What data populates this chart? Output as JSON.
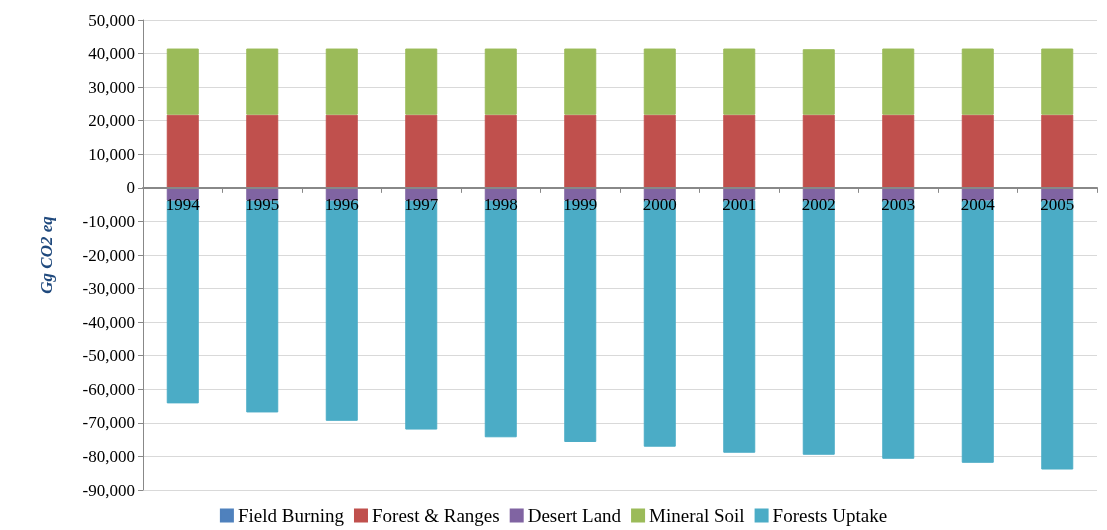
{
  "chart_data": {
    "type": "bar",
    "stacked": true,
    "ylabel": "Gg CO2 eq",
    "categories": [
      "1994",
      "1995",
      "1996",
      "1997",
      "1998",
      "1999",
      "2000",
      "2001",
      "2002",
      "2003",
      "2004",
      "2005"
    ],
    "series": [
      {
        "name": "Field Burning",
        "color": "#4f81bd",
        "values": [
          null,
          null,
          null,
          null,
          null,
          null,
          null,
          null,
          null,
          null,
          null,
          null
        ]
      },
      {
        "name": "Forest & Ranges",
        "color": "#c0504d",
        "values": [
          21800,
          21800,
          21800,
          21800,
          21800,
          21800,
          21800,
          21800,
          21800,
          21800,
          21800,
          21800
        ]
      },
      {
        "name": "Desert Land",
        "color": "#8064a2",
        "values": [
          -3800,
          -3800,
          -3800,
          -3800,
          -3800,
          -3800,
          -3800,
          -3800,
          -3800,
          -3800,
          -3800,
          -3800
        ]
      },
      {
        "name": "Mineral Soil",
        "color": "#9bbb59",
        "values": [
          19700,
          19700,
          19700,
          19700,
          19700,
          19700,
          19700,
          19700,
          19500,
          19700,
          19700,
          19700
        ]
      },
      {
        "name": "Forests Uptake",
        "color": "#4bacc6",
        "values": [
          -60400,
          -63100,
          -65600,
          -68200,
          -70500,
          -71900,
          -73300,
          -75100,
          -75700,
          -76900,
          -78100,
          -80100
        ]
      }
    ],
    "ylim": [
      -90000,
      50000
    ],
    "yticks": [
      {
        "value": -90000,
        "label": "-90,000"
      },
      {
        "value": -80000,
        "label": "-80,000"
      },
      {
        "value": -70000,
        "label": "-70,000"
      },
      {
        "value": -60000,
        "label": "-60,000"
      },
      {
        "value": -50000,
        "label": "-50,000"
      },
      {
        "value": -40000,
        "label": "-40,000"
      },
      {
        "value": -30000,
        "label": "-30,000"
      },
      {
        "value": -20000,
        "label": "-20,000"
      },
      {
        "value": -10000,
        "label": "-10,000"
      },
      0,
      {
        "value": 10000,
        "label": "10,000"
      },
      {
        "value": 20000,
        "label": "20,000"
      },
      {
        "value": 30000,
        "label": "30,000"
      },
      {
        "value": 40000,
        "label": "40,000"
      },
      {
        "value": 50000,
        "label": "50,000"
      }
    ],
    "grid": "y",
    "legend": "bottom"
  }
}
